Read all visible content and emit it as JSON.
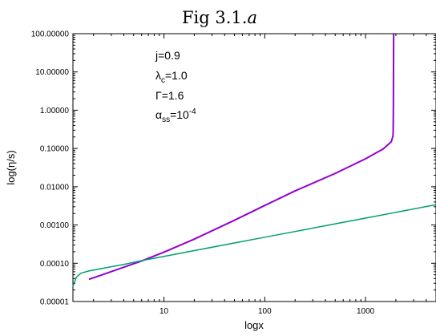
{
  "chart_data": {
    "type": "line",
    "title_main": "Fig 3.1.",
    "title_italic": "a",
    "xlabel": "logx",
    "ylabel": "log(η/s)",
    "x_scale": "log",
    "y_scale": "log",
    "xlim": [
      1.25,
      5000
    ],
    "ylim": [
      1e-05,
      100
    ],
    "x_ticks": [
      {
        "value": 10,
        "label": "10"
      },
      {
        "value": 100,
        "label": "100"
      },
      {
        "value": 1000,
        "label": "1000"
      }
    ],
    "y_ticks": [
      {
        "value": 1e-05,
        "label": "0.00001"
      },
      {
        "value": 0.0001,
        "label": "0.00010"
      },
      {
        "value": 0.001,
        "label": "0.00100"
      },
      {
        "value": 0.01,
        "label": "0.01000"
      },
      {
        "value": 0.1,
        "label": "0.10000"
      },
      {
        "value": 1,
        "label": "1.00000"
      },
      {
        "value": 10,
        "label": "10.00000"
      },
      {
        "value": 100,
        "label": "100.00000"
      }
    ],
    "annotations": {
      "j": "j=0.9",
      "lambda_sym": "λ",
      "lambda_sub": "c",
      "lambda_val": "=1.0",
      "gamma": "Γ=1.6",
      "alpha_sym": "α",
      "alpha_sub": "ss",
      "alpha_mid": "=10",
      "alpha_sup": "-4"
    },
    "grid": false,
    "series": [
      {
        "color": "#9400d3",
        "x": [
          1.8,
          2.5,
          4,
          6,
          10,
          20,
          50,
          100,
          200,
          500,
          1000,
          1500,
          1800,
          1870,
          1880,
          1890,
          1900
        ],
        "y": [
          3.8e-05,
          5.1e-05,
          7.9e-05,
          0.000115,
          0.000195,
          0.000428,
          0.00133,
          0.00324,
          0.00778,
          0.0223,
          0.0537,
          0.0977,
          0.15,
          0.21,
          0.28,
          1.5,
          100
        ]
      },
      {
        "color": "#009e73",
        "x": [
          1.25,
          1.35,
          1.5,
          1.8,
          2.5,
          4,
          6,
          10,
          20,
          50,
          100,
          200,
          500,
          1000,
          2000,
          5000
        ],
        "y": [
          2.5e-05,
          4.3e-05,
          5.5e-05,
          6.3e-05,
          7.4e-05,
          9.3e-05,
          0.000117,
          0.000151,
          0.000214,
          0.000339,
          0.000479,
          0.000676,
          0.00107,
          0.00151,
          0.00214,
          0.00339
        ]
      }
    ]
  }
}
